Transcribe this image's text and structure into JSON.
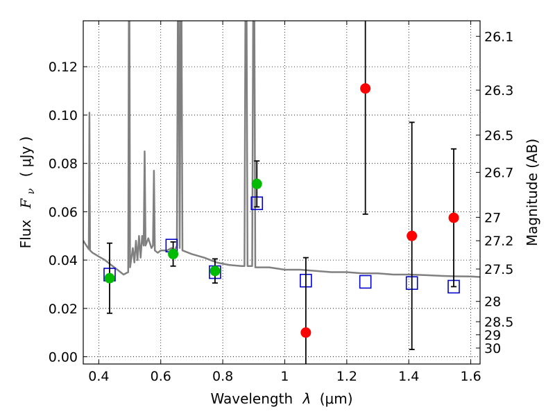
{
  "chart_data": {
    "type": "scatter",
    "xlabel": {
      "prefix": "Wavelength",
      "symbol": "λ",
      "unit": "(μm)"
    },
    "ylabel": {
      "prefix": "Flux",
      "symbol": "F",
      "subscript": "ν",
      "unit": "( μJy )"
    },
    "y2label": "Magnitude (AB)",
    "xlim": [
      0.35,
      1.63
    ],
    "ylim": [
      -0.003,
      0.139
    ],
    "grid": true,
    "x_ticks": [
      0.4,
      0.6,
      0.8,
      1.0,
      1.2,
      1.4,
      1.6
    ],
    "x_tick_labels": [
      "0.4",
      "0.6",
      "0.8",
      "1",
      "1.2",
      "1.4",
      "1.6"
    ],
    "y_ticks": [
      0.0,
      0.02,
      0.04,
      0.06,
      0.08,
      0.1,
      0.12
    ],
    "y_tick_labels": [
      "0.00",
      "0.02",
      "0.04",
      "0.06",
      "0.08",
      "0.10",
      "0.12"
    ],
    "y2_ticks": [
      {
        "flux": 0.1326,
        "label": "26.1"
      },
      {
        "flux": 0.1103,
        "label": "26.3"
      },
      {
        "flux": 0.0917,
        "label": "26.5"
      },
      {
        "flux": 0.0763,
        "label": "26.7"
      },
      {
        "flux": 0.0577,
        "label": "27"
      },
      {
        "flux": 0.048,
        "label": "27.2"
      },
      {
        "flux": 0.0363,
        "label": "27.5"
      },
      {
        "flux": 0.0229,
        "label": "28"
      },
      {
        "flux": 0.0145,
        "label": "28.5"
      },
      {
        "flux": 0.0091,
        "label": "29"
      },
      {
        "flux": 0.0036,
        "label": "30"
      }
    ],
    "series": [
      {
        "name": "model_sed",
        "kind": "line",
        "color": "#808080",
        "points": [
          [
            0.35,
            0.048
          ],
          [
            0.36,
            0.046
          ],
          [
            0.368,
            0.0445
          ],
          [
            0.37,
            0.101
          ],
          [
            0.372,
            0.044
          ],
          [
            0.38,
            0.043
          ],
          [
            0.4,
            0.0415
          ],
          [
            0.42,
            0.04
          ],
          [
            0.44,
            0.038
          ],
          [
            0.46,
            0.036
          ],
          [
            0.48,
            0.034
          ],
          [
            0.495,
            0.035
          ],
          [
            0.497,
            0.139
          ],
          [
            0.499,
            0.139
          ],
          [
            0.501,
            0.037
          ],
          [
            0.51,
            0.045
          ],
          [
            0.515,
            0.039
          ],
          [
            0.52,
            0.048
          ],
          [
            0.525,
            0.04
          ],
          [
            0.53,
            0.05
          ],
          [
            0.535,
            0.041
          ],
          [
            0.54,
            0.05
          ],
          [
            0.545,
            0.046
          ],
          [
            0.548,
            0.085
          ],
          [
            0.551,
            0.046
          ],
          [
            0.56,
            0.049
          ],
          [
            0.57,
            0.045
          ],
          [
            0.575,
            0.046
          ],
          [
            0.578,
            0.077
          ],
          [
            0.581,
            0.044
          ],
          [
            0.59,
            0.043
          ],
          [
            0.6,
            0.044
          ],
          [
            0.62,
            0.044
          ],
          [
            0.635,
            0.045
          ],
          [
            0.645,
            0.044
          ],
          [
            0.652,
            0.046
          ],
          [
            0.655,
            0.139
          ],
          [
            0.658,
            0.139
          ],
          [
            0.661,
            0.045
          ],
          [
            0.664,
            0.139
          ],
          [
            0.667,
            0.139
          ],
          [
            0.67,
            0.044
          ],
          [
            0.7,
            0.0425
          ],
          [
            0.74,
            0.041
          ],
          [
            0.78,
            0.039
          ],
          [
            0.82,
            0.038
          ],
          [
            0.86,
            0.0375
          ],
          [
            0.87,
            0.0375
          ],
          [
            0.873,
            0.139
          ],
          [
            0.877,
            0.139
          ],
          [
            0.88,
            0.0375
          ],
          [
            0.895,
            0.0375
          ],
          [
            0.898,
            0.139
          ],
          [
            0.902,
            0.139
          ],
          [
            0.905,
            0.037
          ],
          [
            0.95,
            0.037
          ],
          [
            1.0,
            0.036
          ],
          [
            1.05,
            0.036
          ],
          [
            1.1,
            0.0355
          ],
          [
            1.15,
            0.035
          ],
          [
            1.2,
            0.035
          ],
          [
            1.25,
            0.0345
          ],
          [
            1.3,
            0.0345
          ],
          [
            1.35,
            0.034
          ],
          [
            1.4,
            0.034
          ],
          [
            1.45,
            0.0338
          ],
          [
            1.5,
            0.0335
          ],
          [
            1.55,
            0.0333
          ],
          [
            1.6,
            0.0332
          ],
          [
            1.63,
            0.033
          ]
        ]
      },
      {
        "name": "model_photometry",
        "kind": "square",
        "color": "#0000cc",
        "points": [
          [
            0.435,
            0.034
          ],
          [
            0.635,
            0.046
          ],
          [
            0.775,
            0.035
          ],
          [
            0.91,
            0.0635
          ],
          [
            1.068,
            0.0315
          ],
          [
            1.26,
            0.031
          ],
          [
            1.41,
            0.0305
          ],
          [
            1.545,
            0.029
          ]
        ]
      },
      {
        "name": "detections",
        "kind": "circle",
        "color": "#00bb00",
        "points": [
          [
            0.435,
            0.0325,
            0.0145
          ],
          [
            0.64,
            0.0425,
            0.005
          ],
          [
            0.775,
            0.0355,
            0.005
          ],
          [
            0.91,
            0.0715,
            0.0095
          ]
        ]
      },
      {
        "name": "non_detections",
        "kind": "circle",
        "color": "#ff0000",
        "points": [
          [
            1.068,
            0.01,
            0.031
          ],
          [
            1.26,
            0.111,
            0.052
          ],
          [
            1.41,
            0.05,
            0.047
          ],
          [
            1.545,
            0.0575,
            0.0285
          ]
        ]
      }
    ]
  }
}
